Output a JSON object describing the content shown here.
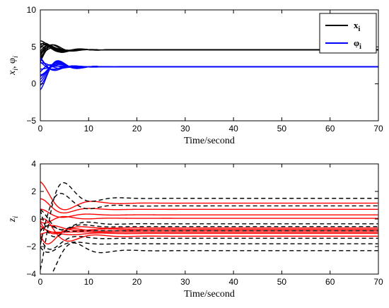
{
  "colors": {
    "x_series": "#000000",
    "phi_series": "#0000ff",
    "z_solid": "#ff0000",
    "z_dashed": "#000000",
    "axes": "#000000",
    "background": "#ffffff"
  },
  "chart_data": [
    {
      "type": "line",
      "xlabel": "Time/second",
      "ylabel": "x_i, φ_i",
      "ylabel_parts": {
        "x": "x",
        "sub1": "i",
        "sep": ",  ",
        "phi": "φ",
        "sub2": "i"
      },
      "xlim": [
        0,
        70
      ],
      "ylim": [
        -5,
        10
      ],
      "xticks": [
        0,
        10,
        20,
        30,
        40,
        50,
        60,
        70
      ],
      "yticks": [
        -5,
        0,
        5,
        10
      ],
      "grid": false,
      "legend_position": "top-right",
      "legend": [
        {
          "label": "x",
          "sub": "i",
          "color": "#000000"
        },
        {
          "label": "φ",
          "sub": "i",
          "color": "#0000ff"
        }
      ],
      "series": [
        {
          "name": "x_i",
          "color": "#000000",
          "style": "solid",
          "steady_state": 4.6,
          "initial_values": [
            3.2,
            4.0,
            5.0,
            5.8,
            3.6,
            4.4,
            5.4,
            3.0,
            4.8,
            5.2,
            3.8,
            4.2
          ],
          "peak_values": [
            6.0,
            5.9,
            5.6,
            5.4,
            5.0,
            5.8,
            5.3,
            5.7
          ]
        },
        {
          "name": "φ_i",
          "color": "#0000ff",
          "style": "solid",
          "steady_state": 2.3,
          "initial_values": [
            -0.8,
            0.2,
            1.2,
            2.0,
            3.4,
            3.6,
            0.6,
            1.6,
            2.8,
            -0.2,
            1.0,
            3.0
          ]
        }
      ]
    },
    {
      "type": "line",
      "xlabel": "Time/second",
      "ylabel": "z_i",
      "ylabel_parts": {
        "z": "z",
        "sub": "i"
      },
      "xlim": [
        0,
        70
      ],
      "ylim": [
        -4,
        4
      ],
      "xticks": [
        0,
        10,
        20,
        30,
        40,
        50,
        60,
        70
      ],
      "yticks": [
        -4,
        -2,
        0,
        2,
        4
      ],
      "grid": false,
      "series": [
        {
          "style": "solid",
          "color": "#ff0000",
          "steady_values": [
            1.15,
            0.7,
            0.3,
            0.05,
            -0.65,
            -0.75,
            -0.85,
            -0.95,
            -1.05,
            -1.25
          ],
          "initial_values": [
            2.7,
            1.5,
            0.8,
            -0.3,
            0.5,
            -1.2,
            0.2,
            -0.6,
            -1.8,
            -2.5
          ]
        },
        {
          "style": "dashed",
          "color": "#000000",
          "steady_values": [
            1.5,
            0.95,
            -0.35,
            -0.55,
            -0.85,
            -1.4,
            -1.8,
            -2.3
          ],
          "initial_values": [
            -3.7,
            -2.0,
            0.9,
            1.4,
            -1.0,
            0.3,
            -0.8,
            1.2
          ]
        }
      ]
    }
  ]
}
